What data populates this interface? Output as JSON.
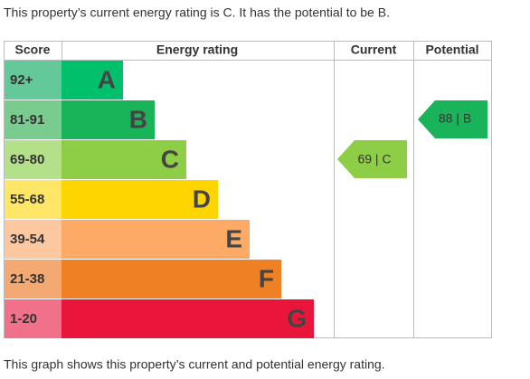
{
  "intro": "This property’s current energy rating is C. It has the potential to be B.",
  "table": {
    "headers": [
      "Score",
      "Energy rating",
      "Current",
      "Potential"
    ],
    "rows": [
      {
        "score": "92+",
        "letter": "A"
      },
      {
        "score": "81-91",
        "letter": "B"
      },
      {
        "score": "69-80",
        "letter": "C"
      },
      {
        "score": "55-68",
        "letter": "D"
      },
      {
        "score": "39-54",
        "letter": "E"
      },
      {
        "score": "21-38",
        "letter": "F"
      },
      {
        "score": "1-20",
        "letter": "G"
      }
    ]
  },
  "current": {
    "label": "69 | C"
  },
  "potential": {
    "label": "88 | B"
  },
  "footer": "This graph shows this property’s current and potential energy rating."
}
